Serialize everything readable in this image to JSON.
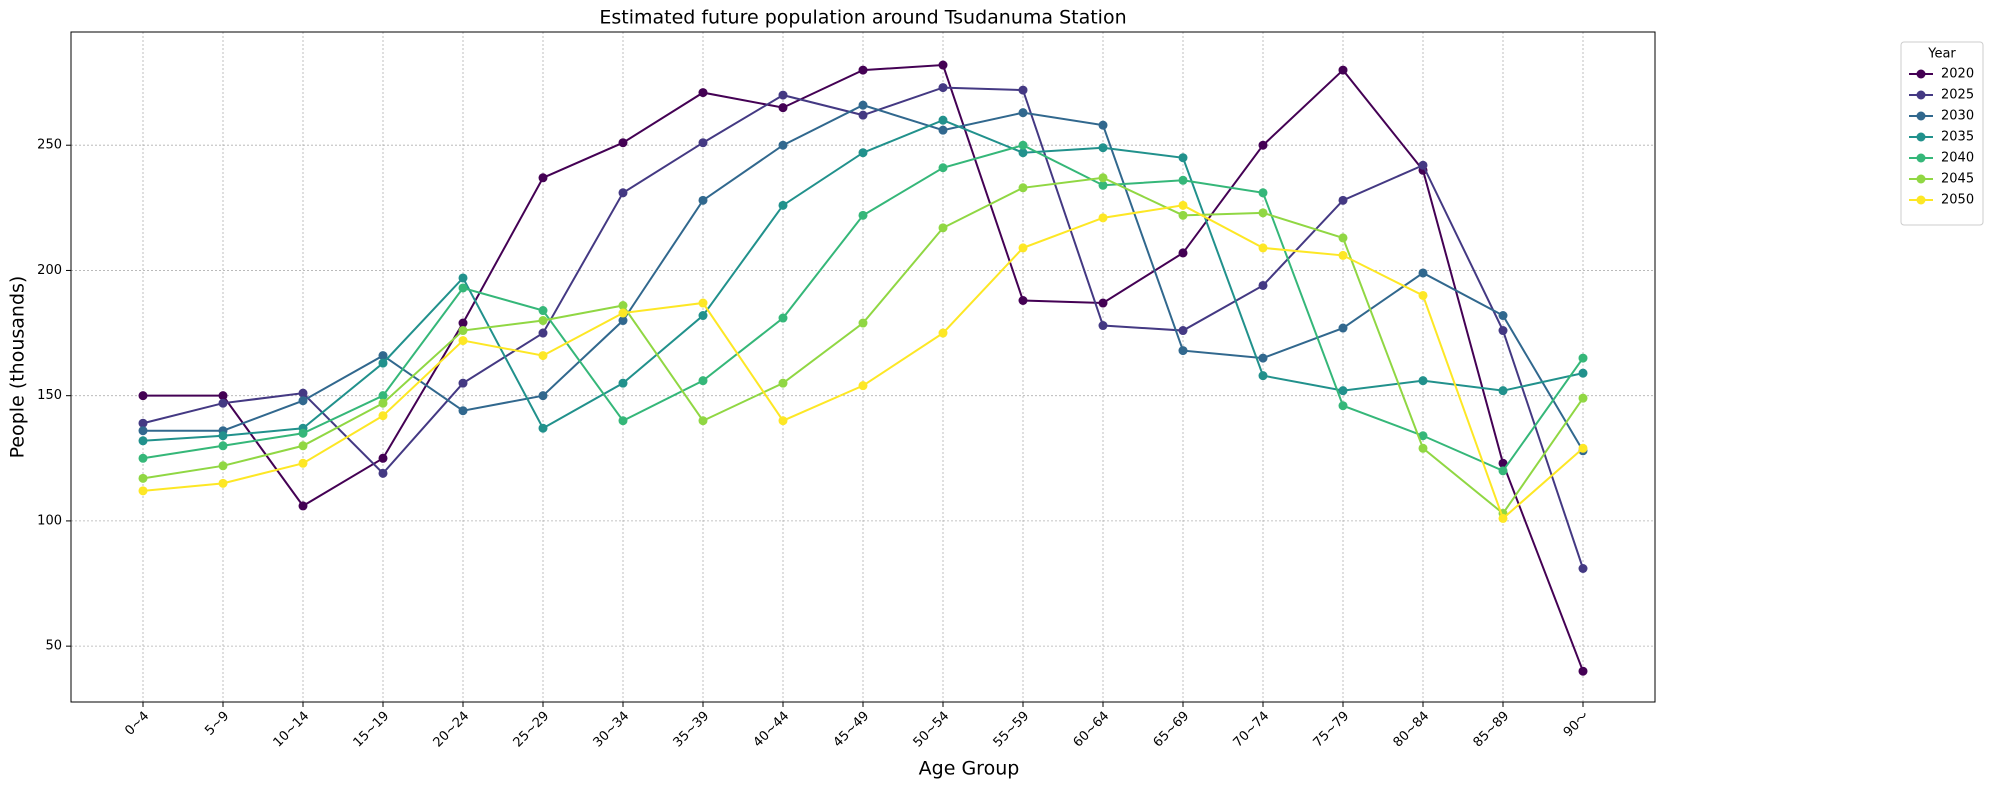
{
  "chart_data": {
    "type": "line",
    "title": "Estimated future population around Tsudanuma Station",
    "x_label": "Age Group",
    "y_label": "People (thousands)",
    "categories": [
      "0~4",
      "5~9",
      "10~14",
      "15~19",
      "20~24",
      "25~29",
      "30~34",
      "35~39",
      "40~44",
      "45~49",
      "50~54",
      "55~59",
      "60~64",
      "65~69",
      "70~74",
      "75~79",
      "80~84",
      "85~89",
      "90～"
    ],
    "legend_title": "Year",
    "legend": "outside upper right",
    "grid": true,
    "ylim": [
      27.7,
      295.2
    ],
    "yticks": [
      50,
      100,
      150,
      200,
      250
    ],
    "series": [
      {
        "name": "2020",
        "color": "#440154",
        "values": [
          150,
          150,
          106,
          125,
          179,
          237,
          251,
          271,
          265,
          280,
          282,
          188,
          187,
          207,
          250,
          280,
          240,
          123,
          40
        ]
      },
      {
        "name": "2025",
        "color": "#443983",
        "values": [
          139,
          147,
          151,
          119,
          155,
          175,
          231,
          251,
          270,
          262,
          273,
          272,
          178,
          176,
          194,
          228,
          242,
          176,
          81
        ]
      },
      {
        "name": "2030",
        "color": "#31688e",
        "values": [
          136,
          136,
          148,
          166,
          144,
          150,
          180,
          228,
          250,
          266,
          256,
          263,
          258,
          168,
          165,
          177,
          199,
          182,
          128
        ]
      },
      {
        "name": "2035",
        "color": "#21918c",
        "values": [
          132,
          134,
          137,
          163,
          197,
          137,
          155,
          182,
          226,
          247,
          260,
          247,
          249,
          245,
          158,
          152,
          156,
          152,
          159
        ]
      },
      {
        "name": "2040",
        "color": "#35b779",
        "values": [
          125,
          130,
          135,
          150,
          193,
          184,
          140,
          156,
          181,
          222,
          241,
          250,
          234,
          236,
          231,
          146,
          134,
          120,
          165
        ]
      },
      {
        "name": "2045",
        "color": "#90d743",
        "values": [
          117,
          122,
          130,
          147,
          176,
          180,
          186,
          140,
          155,
          179,
          217,
          233,
          237,
          222,
          223,
          213,
          129,
          103,
          149
        ]
      },
      {
        "name": "2050",
        "color": "#fde725",
        "values": [
          112,
          115,
          123,
          142,
          172,
          166,
          183,
          187,
          140,
          154,
          175,
          209,
          221,
          226,
          209,
          206,
          190,
          101,
          129
        ]
      }
    ]
  }
}
